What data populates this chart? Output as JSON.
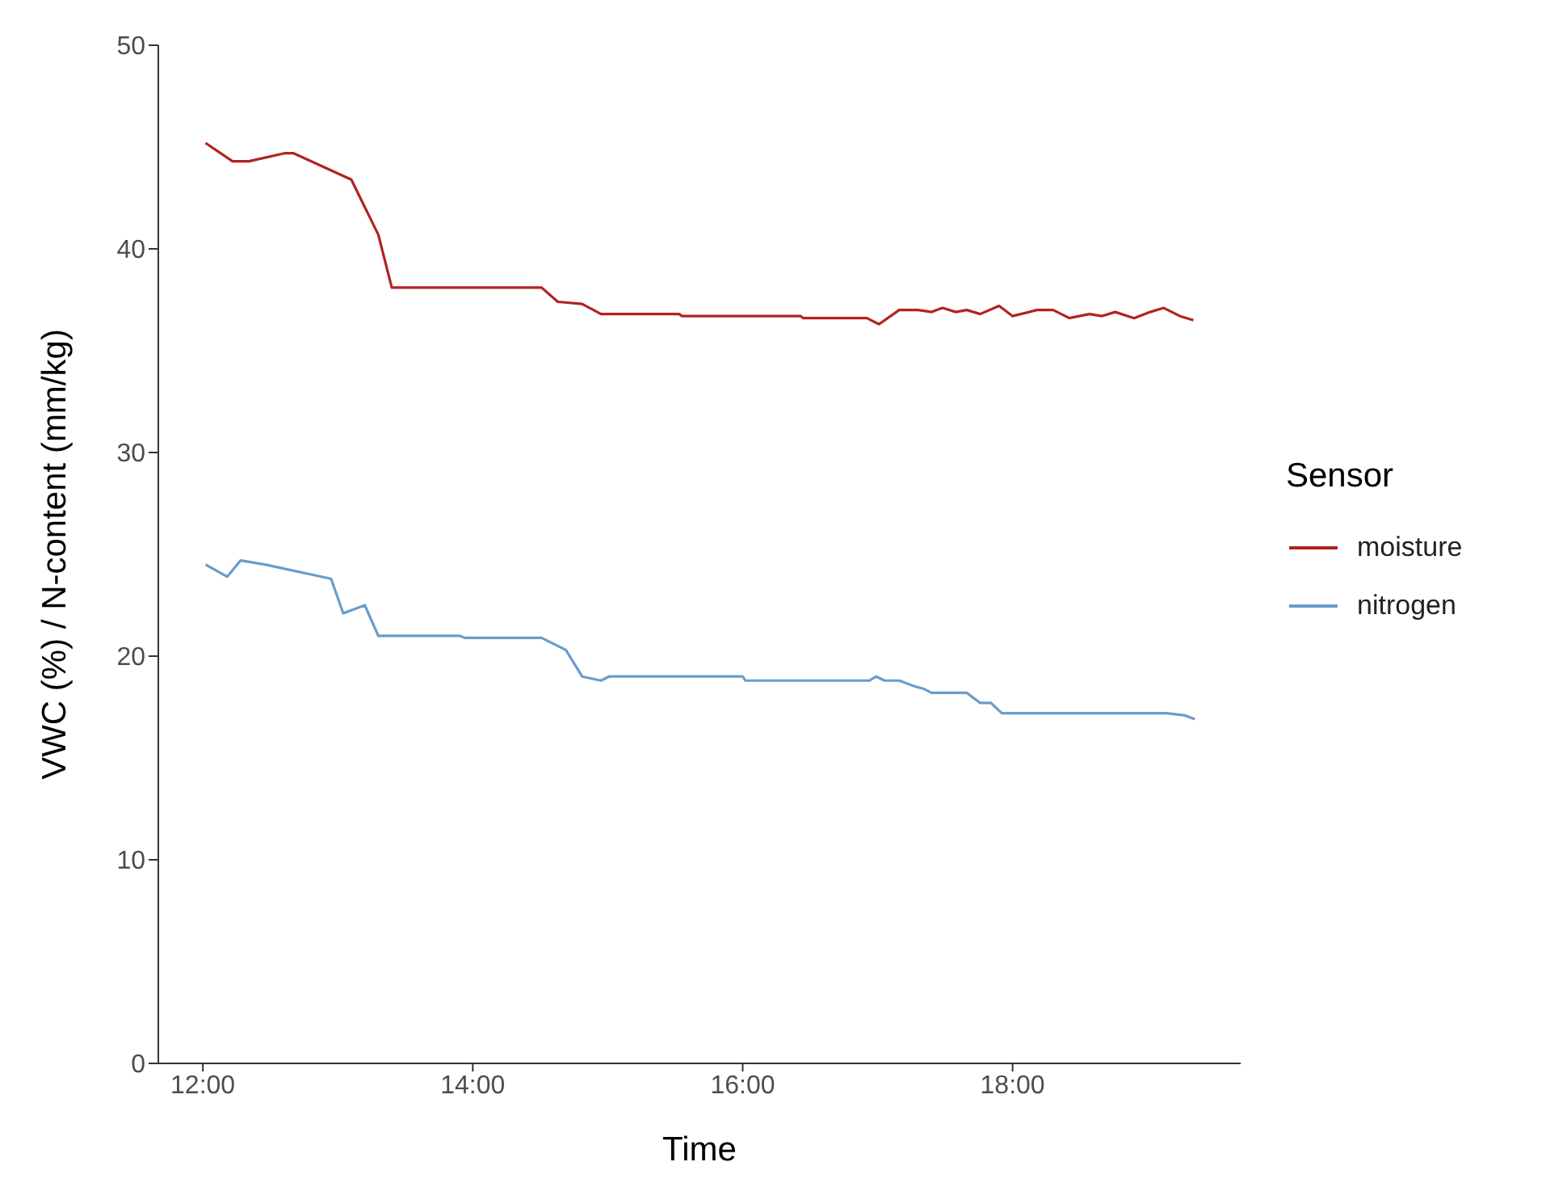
{
  "chart_data": {
    "type": "line",
    "xlabel": "Time",
    "ylabel": "VWC (%) / N-content (mm/kg)",
    "legend_title": "Sensor",
    "legend": "right",
    "grid": false,
    "xlim": [
      11.67,
      19.69
    ],
    "xticks": [
      {
        "value": 12,
        "label": "12:00"
      },
      {
        "value": 14,
        "label": "14:00"
      },
      {
        "value": 16,
        "label": "16:00"
      },
      {
        "value": 18,
        "label": "18:00"
      }
    ],
    "ylim": [
      0,
      50
    ],
    "yticks": [
      0,
      10,
      20,
      30,
      40,
      50
    ],
    "series": [
      {
        "name": "moisture",
        "color": "#b22222",
        "x": [
          12.02,
          12.22,
          12.34,
          12.61,
          12.67,
          13.1,
          13.3,
          13.4,
          14.51,
          14.63,
          14.81,
          14.95,
          15.53,
          15.55,
          16.43,
          16.45,
          16.92,
          17.01,
          17.16,
          17.3,
          17.4,
          17.48,
          17.58,
          17.66,
          17.76,
          17.9,
          18.0,
          18.18,
          18.3,
          18.42,
          18.57,
          18.66,
          18.76,
          18.9,
          19.02,
          19.12,
          19.24,
          19.34
        ],
        "values": [
          45.2,
          44.3,
          44.3,
          44.7,
          44.7,
          43.4,
          40.7,
          38.1,
          38.1,
          37.4,
          37.3,
          36.8,
          36.8,
          36.7,
          36.7,
          36.6,
          36.6,
          36.3,
          37.0,
          37.0,
          36.9,
          37.1,
          36.9,
          37.0,
          36.8,
          37.2,
          36.7,
          37.0,
          37.0,
          36.6,
          36.8,
          36.7,
          36.9,
          36.6,
          36.9,
          37.1,
          36.7,
          36.5
        ]
      },
      {
        "name": "nitrogen",
        "color": "#6a9ccc",
        "x": [
          12.02,
          12.18,
          12.28,
          12.46,
          12.88,
          12.95,
          13.04,
          13.2,
          13.3,
          13.9,
          13.94,
          14.51,
          14.69,
          14.81,
          14.95,
          15.01,
          16.0,
          16.02,
          16.94,
          16.99,
          17.05,
          17.16,
          17.28,
          17.34,
          17.4,
          17.66,
          17.76,
          17.84,
          17.92,
          19.14,
          19.27,
          19.35
        ],
        "values": [
          24.5,
          23.9,
          24.7,
          24.5,
          23.9,
          23.8,
          22.1,
          22.5,
          21.0,
          21.0,
          20.9,
          20.9,
          20.3,
          19.0,
          18.8,
          19.0,
          19.0,
          18.8,
          18.8,
          19.0,
          18.8,
          18.8,
          18.5,
          18.4,
          18.2,
          18.2,
          17.7,
          17.7,
          17.2,
          17.2,
          17.1,
          16.9
        ]
      }
    ]
  }
}
